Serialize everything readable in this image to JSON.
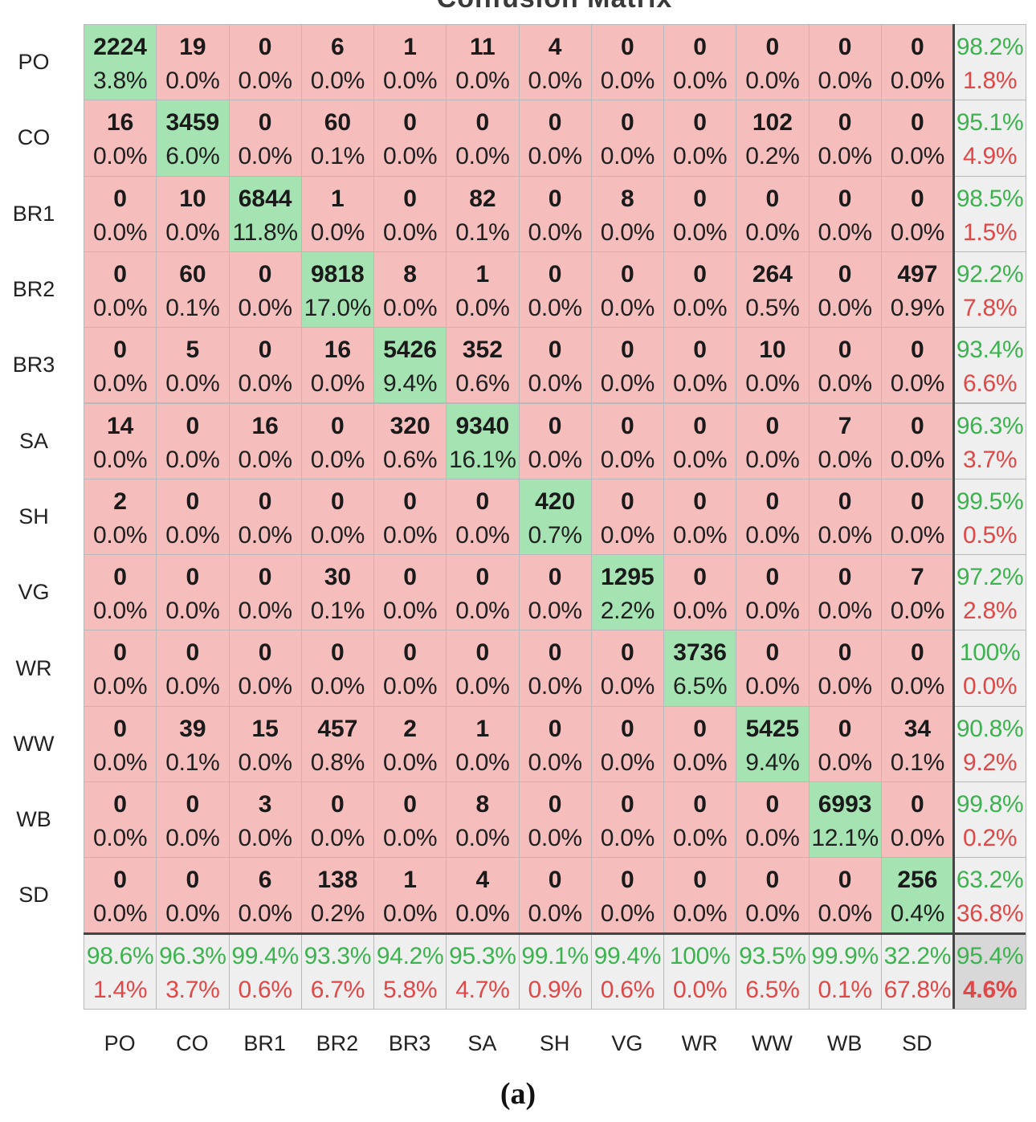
{
  "chart_data": {
    "type": "heatmap",
    "title": "Confusion Matrix",
    "caption": "(a)",
    "row_labels": [
      "PO",
      "CO",
      "BR1",
      "BR2",
      "BR3",
      "SA",
      "SH",
      "VG",
      "WR",
      "WW",
      "WB",
      "SD"
    ],
    "col_labels": [
      "PO",
      "CO",
      "BR1",
      "BR2",
      "BR3",
      "SA",
      "SH",
      "VG",
      "WR",
      "WW",
      "WB",
      "SD"
    ],
    "counts": [
      [
        2224,
        19,
        0,
        6,
        1,
        11,
        4,
        0,
        0,
        0,
        0,
        0
      ],
      [
        16,
        3459,
        0,
        60,
        0,
        0,
        0,
        0,
        0,
        102,
        0,
        0
      ],
      [
        0,
        10,
        6844,
        1,
        0,
        82,
        0,
        8,
        0,
        0,
        0,
        0
      ],
      [
        0,
        60,
        0,
        9818,
        8,
        1,
        0,
        0,
        0,
        264,
        0,
        497
      ],
      [
        0,
        5,
        0,
        16,
        5426,
        352,
        0,
        0,
        0,
        10,
        0,
        0
      ],
      [
        14,
        0,
        16,
        0,
        320,
        9340,
        0,
        0,
        0,
        0,
        7,
        0
      ],
      [
        2,
        0,
        0,
        0,
        0,
        0,
        420,
        0,
        0,
        0,
        0,
        0
      ],
      [
        0,
        0,
        0,
        30,
        0,
        0,
        0,
        1295,
        0,
        0,
        0,
        7
      ],
      [
        0,
        0,
        0,
        0,
        0,
        0,
        0,
        0,
        3736,
        0,
        0,
        0
      ],
      [
        0,
        39,
        15,
        457,
        2,
        1,
        0,
        0,
        0,
        5425,
        0,
        34
      ],
      [
        0,
        0,
        3,
        0,
        0,
        8,
        0,
        0,
        0,
        0,
        6993,
        0
      ],
      [
        0,
        0,
        6,
        138,
        1,
        4,
        0,
        0,
        0,
        0,
        0,
        256
      ]
    ],
    "percents": [
      [
        "3.8%",
        "0.0%",
        "0.0%",
        "0.0%",
        "0.0%",
        "0.0%",
        "0.0%",
        "0.0%",
        "0.0%",
        "0.0%",
        "0.0%",
        "0.0%"
      ],
      [
        "0.0%",
        "6.0%",
        "0.0%",
        "0.1%",
        "0.0%",
        "0.0%",
        "0.0%",
        "0.0%",
        "0.0%",
        "0.2%",
        "0.0%",
        "0.0%"
      ],
      [
        "0.0%",
        "0.0%",
        "11.8%",
        "0.0%",
        "0.0%",
        "0.1%",
        "0.0%",
        "0.0%",
        "0.0%",
        "0.0%",
        "0.0%",
        "0.0%"
      ],
      [
        "0.0%",
        "0.1%",
        "0.0%",
        "17.0%",
        "0.0%",
        "0.0%",
        "0.0%",
        "0.0%",
        "0.0%",
        "0.5%",
        "0.0%",
        "0.9%"
      ],
      [
        "0.0%",
        "0.0%",
        "0.0%",
        "0.0%",
        "9.4%",
        "0.6%",
        "0.0%",
        "0.0%",
        "0.0%",
        "0.0%",
        "0.0%",
        "0.0%"
      ],
      [
        "0.0%",
        "0.0%",
        "0.0%",
        "0.0%",
        "0.6%",
        "16.1%",
        "0.0%",
        "0.0%",
        "0.0%",
        "0.0%",
        "0.0%",
        "0.0%"
      ],
      [
        "0.0%",
        "0.0%",
        "0.0%",
        "0.0%",
        "0.0%",
        "0.0%",
        "0.7%",
        "0.0%",
        "0.0%",
        "0.0%",
        "0.0%",
        "0.0%"
      ],
      [
        "0.0%",
        "0.0%",
        "0.0%",
        "0.1%",
        "0.0%",
        "0.0%",
        "0.0%",
        "2.2%",
        "0.0%",
        "0.0%",
        "0.0%",
        "0.0%"
      ],
      [
        "0.0%",
        "0.0%",
        "0.0%",
        "0.0%",
        "0.0%",
        "0.0%",
        "0.0%",
        "0.0%",
        "6.5%",
        "0.0%",
        "0.0%",
        "0.0%"
      ],
      [
        "0.0%",
        "0.1%",
        "0.0%",
        "0.8%",
        "0.0%",
        "0.0%",
        "0.0%",
        "0.0%",
        "0.0%",
        "9.4%",
        "0.0%",
        "0.1%"
      ],
      [
        "0.0%",
        "0.0%",
        "0.0%",
        "0.0%",
        "0.0%",
        "0.0%",
        "0.0%",
        "0.0%",
        "0.0%",
        "0.0%",
        "12.1%",
        "0.0%"
      ],
      [
        "0.0%",
        "0.0%",
        "0.0%",
        "0.2%",
        "0.0%",
        "0.0%",
        "0.0%",
        "0.0%",
        "0.0%",
        "0.0%",
        "0.0%",
        "0.4%"
      ]
    ],
    "row_summary": [
      [
        "98.2%",
        "1.8%"
      ],
      [
        "95.1%",
        "4.9%"
      ],
      [
        "98.5%",
        "1.5%"
      ],
      [
        "92.2%",
        "7.8%"
      ],
      [
        "93.4%",
        "6.6%"
      ],
      [
        "96.3%",
        "3.7%"
      ],
      [
        "99.5%",
        "0.5%"
      ],
      [
        "97.2%",
        "2.8%"
      ],
      [
        "100%",
        "0.0%"
      ],
      [
        "90.8%",
        "9.2%"
      ],
      [
        "99.8%",
        "0.2%"
      ],
      [
        "63.2%",
        "36.8%"
      ]
    ],
    "col_summary": [
      [
        "98.6%",
        "1.4%"
      ],
      [
        "96.3%",
        "3.7%"
      ],
      [
        "99.4%",
        "0.6%"
      ],
      [
        "93.3%",
        "6.7%"
      ],
      [
        "94.2%",
        "5.8%"
      ],
      [
        "95.3%",
        "4.7%"
      ],
      [
        "99.1%",
        "0.9%"
      ],
      [
        "99.4%",
        "0.6%"
      ],
      [
        "100%",
        "0.0%"
      ],
      [
        "93.5%",
        "6.5%"
      ],
      [
        "99.9%",
        "0.1%"
      ],
      [
        "32.2%",
        "67.8%"
      ]
    ],
    "overall": [
      "95.4%",
      "4.6%"
    ],
    "colors": {
      "correct": "#a6e3b3",
      "incorrect": "#f6bdbd",
      "summary": "#efefef",
      "overall": "#d8d8d8",
      "good_text": "#3cb34f",
      "bad_text": "#e04848"
    }
  }
}
